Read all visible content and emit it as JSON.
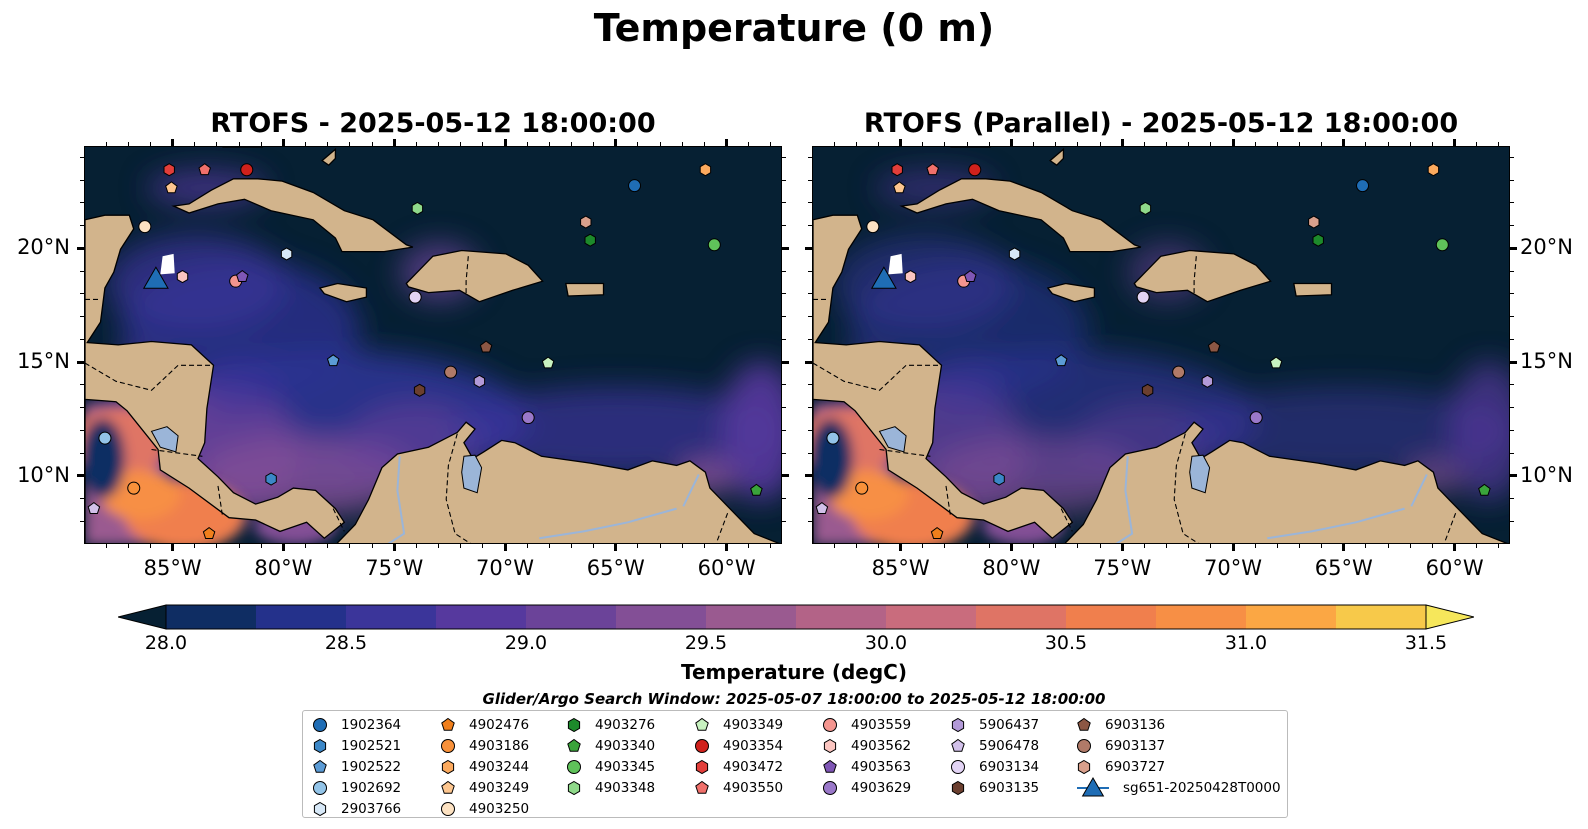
{
  "title": "Temperature (0 m)",
  "panels": [
    {
      "title": "RTOFS - 2025-05-12 18:00:00"
    },
    {
      "title": "RTOFS (Parallel) - 2025-05-12 18:00:00"
    }
  ],
  "map": {
    "lon_range": [
      -89,
      -57.5
    ],
    "lat_range": [
      7,
      24.5
    ],
    "lat_ticks": [
      {
        "value": 20,
        "label": "20°N"
      },
      {
        "value": 15,
        "label": "15°N"
      },
      {
        "value": 10,
        "label": "10°N"
      }
    ],
    "lon_ticks": [
      {
        "value": -85,
        "label": "85°W"
      },
      {
        "value": -80,
        "label": "80°W"
      },
      {
        "value": -75,
        "label": "75°W"
      },
      {
        "value": -70,
        "label": "70°W"
      },
      {
        "value": -65,
        "label": "65°W"
      },
      {
        "value": -60,
        "label": "60°W"
      }
    ],
    "colors": {
      "ocean_deep": "#062033",
      "land": "#d2b48c",
      "lake": "#9bb5d8",
      "border": "#000000"
    }
  },
  "colorbar": {
    "label": "Temperature (degC)",
    "min": 28.0,
    "max": 31.5,
    "tick_labels": [
      "28.0",
      "28.5",
      "29.0",
      "29.5",
      "30.0",
      "30.5",
      "31.0",
      "31.5"
    ],
    "tick_values": [
      28.0,
      28.5,
      29.0,
      29.5,
      30.0,
      30.5,
      31.0,
      31.5
    ],
    "extend": "both",
    "colors": [
      "#062033",
      "#0f2d63",
      "#24318b",
      "#3b359a",
      "#56399e",
      "#6b4399",
      "#834f96",
      "#9a5a90",
      "#b36387",
      "#c96c7d",
      "#df7465",
      "#f07f4d",
      "#f78f45",
      "#fba744",
      "#f7c94a",
      "#f6e75b"
    ]
  },
  "search_window": "Glider/Argo Search Window: 2025-05-07 18:00:00 to 2025-05-12 18:00:00",
  "legend": {
    "columns": [
      [
        {
          "id": "1902364",
          "shape": "circle",
          "color": "#1f6db5"
        },
        {
          "id": "1902521",
          "shape": "hexagon",
          "color": "#3b87c7"
        },
        {
          "id": "1902522",
          "shape": "pentagon",
          "color": "#5b9bd5"
        },
        {
          "id": "1902692",
          "shape": "circle",
          "color": "#93c4e8"
        },
        {
          "id": "2903766",
          "shape": "hexagon",
          "color": "#d7e8f7"
        }
      ],
      [
        {
          "id": "4902476",
          "shape": "pentagon",
          "color": "#f07f1c"
        },
        {
          "id": "4903186",
          "shape": "circle",
          "color": "#f8913a"
        },
        {
          "id": "4903244",
          "shape": "hexagon",
          "color": "#fcaa5e"
        },
        {
          "id": "4903249",
          "shape": "pentagon",
          "color": "#fdc68f"
        },
        {
          "id": "4903250",
          "shape": "circle",
          "color": "#fde2c2"
        }
      ],
      [
        {
          "id": "4903276",
          "shape": "hexagon",
          "color": "#1d8a2b"
        },
        {
          "id": "4903340",
          "shape": "pentagon",
          "color": "#3aa43b"
        },
        {
          "id": "4903345",
          "shape": "circle",
          "color": "#5fc25a"
        },
        {
          "id": "4903348",
          "shape": "hexagon",
          "color": "#8fd98a"
        }
      ],
      [
        {
          "id": "4903349",
          "shape": "pentagon",
          "color": "#c8f2c0"
        },
        {
          "id": "4903354",
          "shape": "circle",
          "color": "#d0211c"
        },
        {
          "id": "4903472",
          "shape": "hexagon",
          "color": "#e23e3a"
        },
        {
          "id": "4903550",
          "shape": "pentagon",
          "color": "#f0706b"
        }
      ],
      [
        {
          "id": "4903559",
          "shape": "circle",
          "color": "#f4958f"
        },
        {
          "id": "4903562",
          "shape": "hexagon",
          "color": "#fbc5c0"
        },
        {
          "id": "4903563",
          "shape": "pentagon",
          "color": "#7f56b5"
        },
        {
          "id": "4903629",
          "shape": "circle",
          "color": "#9a78c9"
        }
      ],
      [
        {
          "id": "5906437",
          "shape": "hexagon",
          "color": "#b39ad8"
        },
        {
          "id": "5906478",
          "shape": "pentagon",
          "color": "#d2c1ea"
        },
        {
          "id": "6903134",
          "shape": "circle",
          "color": "#e3d4f5"
        },
        {
          "id": "6903135",
          "shape": "hexagon",
          "color": "#6b3f2f"
        }
      ],
      [
        {
          "id": "6903136",
          "shape": "pentagon",
          "color": "#8c5744"
        },
        {
          "id": "6903137",
          "shape": "circle",
          "color": "#b07a68"
        },
        {
          "id": "6903727",
          "shape": "hexagon",
          "color": "#d9a08c"
        },
        {
          "id": "sg651-20250428T0000",
          "shape": "triangle",
          "color": "#1f6db5"
        }
      ]
    ]
  },
  "floats": [
    {
      "id": "1902364",
      "lon": -64.2,
      "lat": 22.8
    },
    {
      "id": "1902521",
      "lon": -80.6,
      "lat": 9.9
    },
    {
      "id": "1902522",
      "lon": -77.8,
      "lat": 15.1
    },
    {
      "id": "1902692",
      "lon": -88.1,
      "lat": 11.7
    },
    {
      "id": "2903766",
      "lon": -79.9,
      "lat": 19.8
    },
    {
      "id": "4902476",
      "lon": -83.4,
      "lat": 7.5
    },
    {
      "id": "4903186",
      "lon": -86.8,
      "lat": 9.5
    },
    {
      "id": "4903244",
      "lon": -61.0,
      "lat": 23.5
    },
    {
      "id": "4903249",
      "lon": -85.1,
      "lat": 22.7
    },
    {
      "id": "4903250",
      "lon": -86.3,
      "lat": 21.0
    },
    {
      "id": "4903276",
      "lon": -66.2,
      "lat": 20.4
    },
    {
      "id": "4903340",
      "lon": -58.7,
      "lat": 9.4
    },
    {
      "id": "4903345",
      "lon": -60.6,
      "lat": 20.2
    },
    {
      "id": "4903348",
      "lon": -74.0,
      "lat": 21.8
    },
    {
      "id": "4903349",
      "lon": -68.1,
      "lat": 15.0
    },
    {
      "id": "4903354",
      "lon": -81.7,
      "lat": 23.5
    },
    {
      "id": "4903472",
      "lon": -85.2,
      "lat": 23.5
    },
    {
      "id": "4903550",
      "lon": -83.6,
      "lat": 23.5
    },
    {
      "id": "4903559",
      "lon": -82.2,
      "lat": 18.6
    },
    {
      "id": "4903562",
      "lon": -84.6,
      "lat": 18.8
    },
    {
      "id": "4903563",
      "lon": -81.9,
      "lat": 18.8
    },
    {
      "id": "4903629",
      "lon": -69.0,
      "lat": 12.6
    },
    {
      "id": "5906437",
      "lon": -71.2,
      "lat": 14.2
    },
    {
      "id": "5906478",
      "lon": -88.6,
      "lat": 8.6
    },
    {
      "id": "6903134",
      "lon": -74.1,
      "lat": 17.9
    },
    {
      "id": "6903135",
      "lon": -73.9,
      "lat": 13.8
    },
    {
      "id": "6903136",
      "lon": -70.9,
      "lat": 15.7
    },
    {
      "id": "6903137",
      "lon": -72.5,
      "lat": 14.6
    },
    {
      "id": "6903727",
      "lon": -66.4,
      "lat": 21.2
    }
  ],
  "glider": {
    "id": "sg651-20250428T0000",
    "lon": -85.8,
    "lat": 18.6
  }
}
